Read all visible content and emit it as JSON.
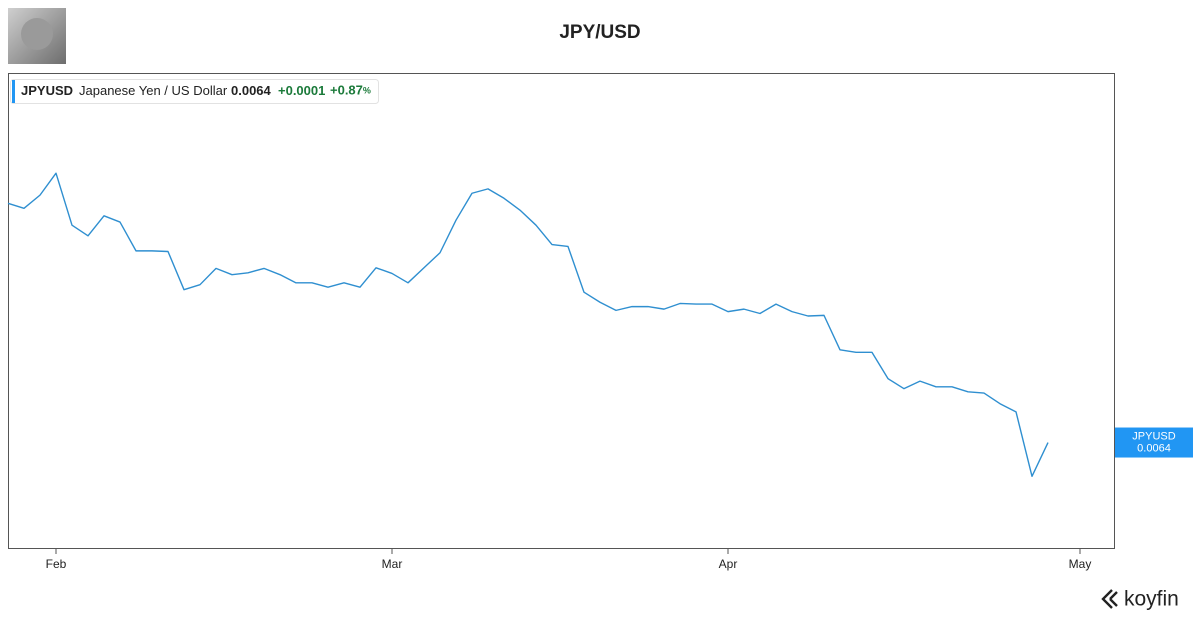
{
  "chart_data": {
    "type": "line",
    "title": "JPY/USD",
    "brand": "koyfin",
    "legend": {
      "ticker": "JPYUSD",
      "name": "Japanese Yen / US Dollar",
      "change": "+0.0001",
      "change_pct": "+0.87",
      "pct_sign": "%"
    },
    "categories": [
      null,
      null,
      null,
      "Feb",
      null,
      null,
      null,
      null,
      null,
      null,
      null,
      null,
      null,
      null,
      null,
      null,
      null,
      null,
      null,
      null,
      null,
      null,
      null,
      null,
      "Mar",
      null,
      null,
      null,
      null,
      null,
      null,
      null,
      null,
      null,
      null,
      null,
      null,
      null,
      null,
      null,
      null,
      null,
      null,
      null,
      null,
      "Apr",
      null,
      null,
      null,
      null,
      null,
      null,
      null,
      null,
      null,
      null,
      null,
      null,
      null,
      null,
      null,
      null,
      null,
      null,
      null,
      null,
      null,
      "May"
    ],
    "series": [
      {
        "name": "JPYUSD",
        "color": "#2f8fd0",
        "values": [
          0.006782,
          0.006774,
          0.006795,
          0.00683,
          0.006747,
          0.00673,
          0.006762,
          0.006752,
          0.006706,
          0.006706,
          0.006705,
          0.006644,
          0.006652,
          0.006678,
          0.006668,
          0.006671,
          0.006678,
          0.006668,
          0.006655,
          0.006655,
          0.006648,
          0.006655,
          0.006648,
          0.006679,
          0.00667,
          0.006655,
          0.006679,
          0.006703,
          0.006755,
          0.006798,
          0.006805,
          0.00679,
          0.006771,
          0.006747,
          0.006716,
          0.006713,
          0.00664,
          0.006624,
          0.006611,
          0.006617,
          0.006617,
          0.006613,
          0.006622,
          0.006621,
          0.006621,
          0.006609,
          0.006613,
          0.006606,
          0.006621,
          0.006609,
          0.006602,
          0.006603,
          0.006548,
          0.006544,
          0.006544,
          0.006502,
          0.006486,
          0.006498,
          0.006489,
          0.006489,
          0.006481,
          0.006479,
          0.006462,
          0.006449,
          0.006346,
          0.0064,
          null,
          null
        ]
      }
    ],
    "ylim": [
      0.00623,
      0.00699
    ],
    "grid": false,
    "tag_color": "#2196f3"
  }
}
